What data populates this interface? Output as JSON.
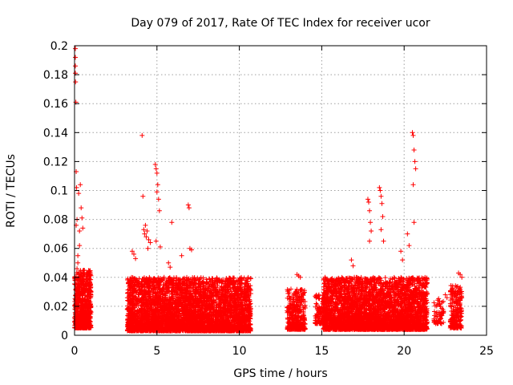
{
  "chart_data": {
    "type": "scatter",
    "title": "Day 079 of 2017, Rate Of TEC Index for receiver ucor",
    "xlabel": "GPS time / hours",
    "ylabel": "ROTI / TECUs",
    "xlim": [
      0,
      25
    ],
    "ylim": [
      0,
      0.2
    ],
    "x_ticks": [
      0,
      5,
      10,
      15,
      20,
      25
    ],
    "y_ticks": [
      0,
      0.02,
      0.04,
      0.06,
      0.08,
      0.1,
      0.12,
      0.14,
      0.16,
      0.18,
      0.2
    ],
    "x_tick_labels": [
      "0",
      "5",
      "10",
      "15",
      "20",
      "25"
    ],
    "y_tick_labels": [
      "0",
      "0.02",
      "0.04",
      "0.06",
      "0.08",
      "0.1",
      "0.12",
      "0.14",
      "0.16",
      "0.18",
      "0.2"
    ],
    "grid": true,
    "marker": "plus",
    "color": "#ff0000",
    "series": [
      {
        "x": [
          0.05,
          0.05,
          0.05,
          0.05,
          0.06,
          0.08,
          0.1,
          0.12,
          0.15,
          0.1,
          0.2,
          0.3,
          0.35,
          0.25,
          0.4,
          0.45,
          0.5,
          0.3,
          0.2,
          0.15,
          4.1,
          4.15,
          4.3,
          4.2,
          4.25,
          4.35,
          4.4,
          4.5,
          4.6,
          4.45,
          4.9,
          4.95,
          5.0,
          5.05,
          5.0,
          5.1,
          5.15,
          4.95,
          5.2,
          5.9,
          6.9,
          6.95,
          7.0,
          7.1,
          6.5,
          5.7,
          5.8,
          3.5,
          3.6,
          3.7,
          17.8,
          17.85,
          17.9,
          17.95,
          18.0,
          17.9,
          18.5,
          18.55,
          18.6,
          18.65,
          18.7,
          18.6,
          18.75,
          20.5,
          20.55,
          20.6,
          20.65,
          20.7,
          20.55,
          20.6,
          20.2,
          20.3,
          16.8,
          16.9,
          19.8,
          19.9,
          13.5,
          13.6,
          13.7,
          15.2,
          22.5,
          22.6,
          23.3,
          23.4,
          23.5
        ],
        "y": [
          0.198,
          0.192,
          0.186,
          0.181,
          0.175,
          0.161,
          0.113,
          0.102,
          0.08,
          0.076,
          0.055,
          0.062,
          0.104,
          0.098,
          0.088,
          0.081,
          0.074,
          0.072,
          0.05,
          0.046,
          0.138,
          0.096,
          0.076,
          0.073,
          0.07,
          0.068,
          0.072,
          0.066,
          0.064,
          0.06,
          0.118,
          0.115,
          0.112,
          0.104,
          0.099,
          0.094,
          0.086,
          0.065,
          0.061,
          0.078,
          0.09,
          0.088,
          0.06,
          0.059,
          0.055,
          0.05,
          0.047,
          0.058,
          0.056,
          0.053,
          0.094,
          0.092,
          0.086,
          0.078,
          0.072,
          0.065,
          0.102,
          0.1,
          0.096,
          0.091,
          0.082,
          0.073,
          0.065,
          0.14,
          0.138,
          0.128,
          0.12,
          0.115,
          0.104,
          0.078,
          0.07,
          0.062,
          0.052,
          0.048,
          0.058,
          0.052,
          0.042,
          0.041,
          0.04,
          0.04,
          0.028,
          0.026,
          0.043,
          0.042,
          0.04
        ]
      }
    ],
    "dense_clusters": [
      {
        "x_range": [
          0.0,
          1.0
        ],
        "y_range": [
          0.005,
          0.045
        ],
        "count": 700
      },
      {
        "x_range": [
          3.2,
          10.7
        ],
        "y_range": [
          0.003,
          0.04
        ],
        "count": 4200
      },
      {
        "x_range": [
          12.9,
          14.0
        ],
        "y_range": [
          0.004,
          0.032
        ],
        "count": 350
      },
      {
        "x_range": [
          14.6,
          15.2
        ],
        "y_range": [
          0.008,
          0.028
        ],
        "count": 120
      },
      {
        "x_range": [
          15.1,
          21.4
        ],
        "y_range": [
          0.004,
          0.04
        ],
        "count": 3500
      },
      {
        "x_range": [
          21.8,
          22.4
        ],
        "y_range": [
          0.008,
          0.026
        ],
        "count": 60
      },
      {
        "x_range": [
          22.8,
          23.5
        ],
        "y_range": [
          0.005,
          0.035
        ],
        "count": 220
      }
    ]
  }
}
